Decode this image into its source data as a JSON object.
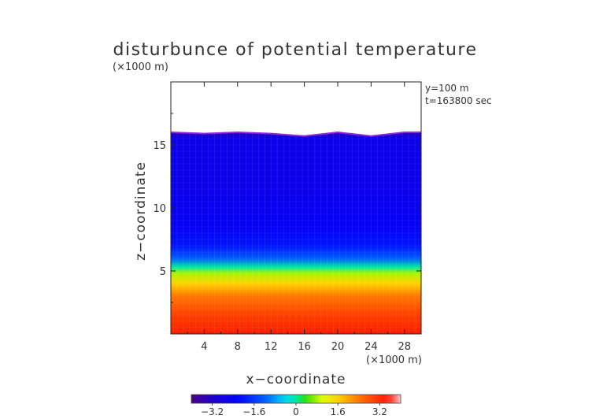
{
  "chart_data": {
    "type": "heatmap",
    "title": "disturbunce of potential temperature",
    "units_top": "(×1000 m)",
    "units_bottom": "(×1000 m)",
    "xlabel": "x−coordinate",
    "ylabel": "z−coordinate",
    "annotation_lines": [
      "y=100 m",
      "t=163800 sec"
    ],
    "x_range": [
      0,
      30
    ],
    "y_range": [
      0,
      20
    ],
    "x_ticks": [
      4,
      8,
      12,
      16,
      20,
      24,
      28
    ],
    "y_ticks": [
      5,
      10,
      15
    ],
    "colorbar": {
      "range": [
        -4,
        4
      ],
      "tick_values": [
        -3.2,
        -1.6,
        0,
        1.6,
        3.2
      ],
      "tick_labels": [
        "−3.2",
        "−1.6",
        "0",
        "1.6",
        "3.2"
      ]
    },
    "field_top_profile": {
      "x": [
        0,
        4,
        8,
        12,
        16,
        20,
        24,
        28,
        30
      ],
      "z": [
        16.0,
        15.9,
        16.0,
        15.9,
        15.7,
        16.0,
        15.7,
        16.0,
        16.0
      ]
    },
    "value_profile": {
      "z": [
        0,
        1.5,
        3,
        4,
        4.8,
        5.3,
        6,
        7,
        8.5,
        12,
        15.5,
        16
      ],
      "value": [
        3.4,
        3.0,
        2.4,
        1.6,
        0.8,
        0.0,
        -1.2,
        -2.0,
        -2.4,
        -2.6,
        -2.6,
        -3.4
      ]
    }
  }
}
